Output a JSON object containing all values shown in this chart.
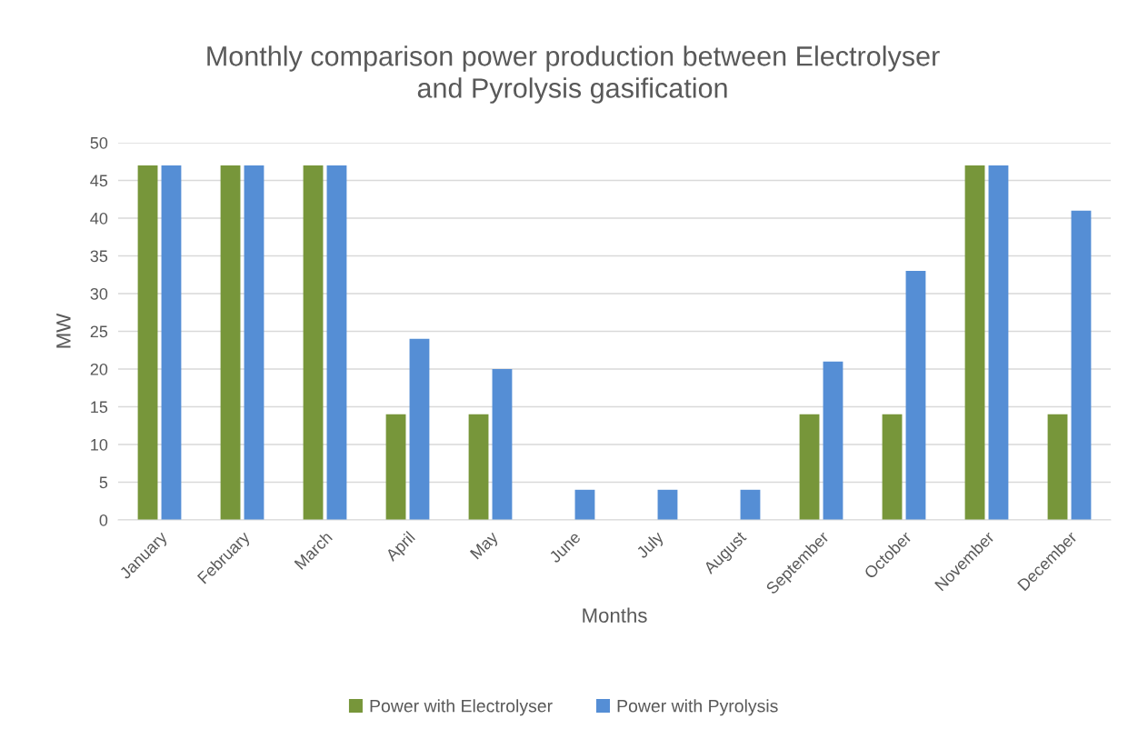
{
  "chart_data": {
    "type": "bar",
    "title": "Monthly comparison power production between Electrolyser\nand Pyrolysis gasification",
    "xlabel": "Months",
    "ylabel": "MW",
    "categories": [
      "January",
      "February",
      "March",
      "April",
      "May",
      "June",
      "July",
      "August",
      "September",
      "October",
      "November",
      "December"
    ],
    "series": [
      {
        "name": "Power with Electrolyser",
        "color": "#77963a",
        "values": [
          47,
          47,
          47,
          14,
          14,
          0,
          0,
          0,
          14,
          14,
          47,
          14
        ]
      },
      {
        "name": "Power with Pyrolysis",
        "color": "#558ed5",
        "values": [
          47,
          47,
          47,
          24,
          20,
          4,
          4,
          4,
          21,
          33,
          47,
          41
        ]
      }
    ],
    "ylim": [
      0,
      50
    ],
    "yticks": [
      0,
      5,
      10,
      15,
      20,
      25,
      30,
      35,
      40,
      45,
      50
    ],
    "grid": "y",
    "legend": "bottom"
  }
}
